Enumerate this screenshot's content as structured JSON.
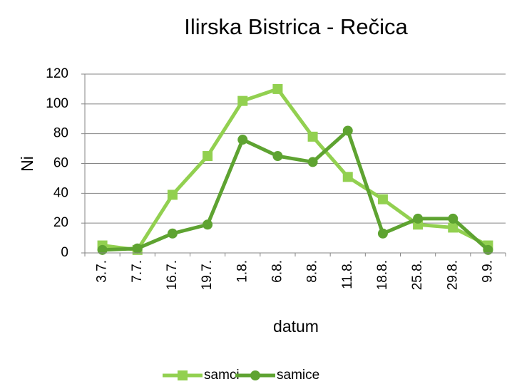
{
  "chart_data": {
    "type": "line",
    "title": "Ilirska Bistrica - Rečica",
    "x_label": "datum",
    "y_label": "Ni",
    "categories": [
      "3.7.",
      "7.7.",
      "16.7.",
      "19.7.",
      "1.8.",
      "6.8.",
      "8.8.",
      "11.8.",
      "18.8.",
      "25.8.",
      "29.8.",
      "9.9."
    ],
    "series": [
      {
        "name": "samci",
        "color": "#92d050",
        "marker": "square",
        "values": [
          5,
          2,
          39,
          65,
          102,
          110,
          78,
          51,
          36,
          19,
          17,
          5
        ]
      },
      {
        "name": "samice",
        "color": "#5ea331",
        "marker": "circle",
        "values": [
          2,
          3,
          13,
          19,
          76,
          65,
          61,
          82,
          13,
          23,
          23,
          2
        ]
      }
    ],
    "ylim": [
      0,
      120
    ],
    "yticks": [
      0,
      20,
      40,
      60,
      80,
      100,
      120
    ],
    "grid": true,
    "legend": "bottom"
  }
}
